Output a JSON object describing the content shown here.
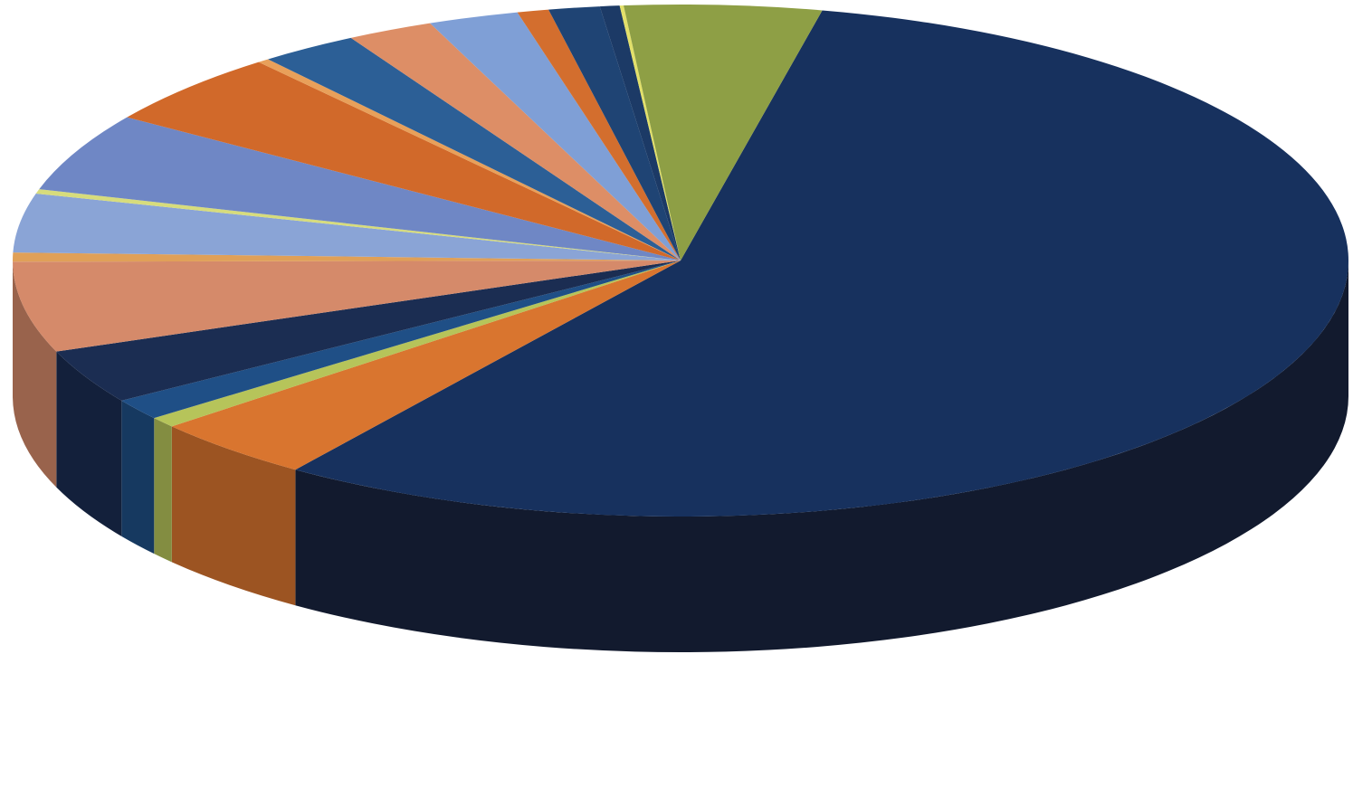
{
  "chart_data": {
    "type": "pie",
    "style": "3d",
    "legend": "none",
    "title": "",
    "slices": [
      {
        "value": 59.2,
        "color": "#17315e",
        "side_color": "#121a2e"
      },
      {
        "value": 4.2,
        "color": "#d9752f"
      },
      {
        "value": 0.7,
        "color": "#b6c45a"
      },
      {
        "value": 1.4,
        "color": "#1f4f86"
      },
      {
        "value": 3.6,
        "color": "#1b2d52"
      },
      {
        "value": 6.0,
        "color": "#d58a6a"
      },
      {
        "value": 0.6,
        "color": "#e0a058"
      },
      {
        "value": 3.9,
        "color": "#8aa4d6"
      },
      {
        "value": 0.3,
        "color": "#d7dc7c"
      },
      {
        "value": 5.2,
        "color": "#6f87c5"
      },
      {
        "value": 4.9,
        "color": "#d1692a"
      },
      {
        "value": 0.3,
        "color": "#e8a05a"
      },
      {
        "value": 2.5,
        "color": "#2c5f96"
      },
      {
        "value": 2.2,
        "color": "#dd8e66"
      },
      {
        "value": 2.3,
        "color": "#7f9fd6"
      },
      {
        "value": 0.8,
        "color": "#d36e2e"
      },
      {
        "value": 1.3,
        "color": "#1f4474"
      },
      {
        "value": 0.5,
        "color": "#1c3a66"
      },
      {
        "value": 0.1,
        "color": "#e2e06a"
      },
      {
        "value": 5.0,
        "color": "#8e9f45"
      }
    ]
  }
}
